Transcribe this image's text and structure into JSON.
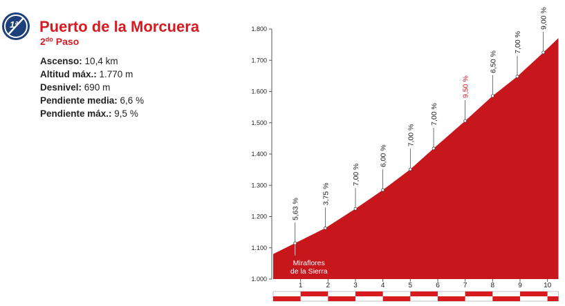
{
  "header": {
    "category_badge": "1ª",
    "title": "Puerto de la Morcuera",
    "stage_number": "2",
    "stage_suffix": "do",
    "stage_word": "Paso",
    "stats": [
      {
        "label": "Ascenso:",
        "value": "10,4 km"
      },
      {
        "label": "Altitud máx.:",
        "value": "1.770 m"
      },
      {
        "label": "Desnivel:",
        "value": "690 m"
      },
      {
        "label": "Pendiente media:",
        "value": "6,6 %"
      },
      {
        "label": "Pendiente máx.:",
        "value": "9,5 %"
      }
    ]
  },
  "chart_data": {
    "type": "area",
    "color": "#c8161d",
    "x": [
      0,
      0.8,
      1.9,
      3,
      4,
      5,
      5.85,
      7,
      8,
      8.9,
      9.85,
      10.4
    ],
    "y": [
      1080,
      1115,
      1163,
      1225,
      1285,
      1351,
      1418,
      1506,
      1586,
      1648,
      1725,
      1771
    ],
    "point_labels": [
      null,
      "5,63 %",
      "3,75 %",
      "7,00 %",
      "6,00 %",
      "7,00 %",
      "7,00 %",
      "9,50 %",
      "6,50 %",
      "7,00 %",
      "9,00 %",
      null
    ],
    "point_label_colors": [
      null,
      "#222",
      "#222",
      "#222",
      "#222",
      "#222",
      "#222",
      "#d71920",
      "#222",
      "#222",
      "#222",
      null
    ],
    "xlim": [
      0,
      10.4
    ],
    "xticks": [
      1,
      2,
      3,
      4,
      5,
      6,
      7,
      8,
      9,
      10
    ],
    "ylim": [
      1000,
      1800
    ],
    "yticks": [
      {
        "value": 1000,
        "label": "1.000"
      },
      {
        "value": 1100,
        "label": "1.100"
      },
      {
        "value": 1200,
        "label": "1.200"
      },
      {
        "value": 1300,
        "label": "1.300"
      },
      {
        "value": 1400,
        "label": "1.400"
      },
      {
        "value": 1500,
        "label": "1.500"
      },
      {
        "value": 1600,
        "label": "1.600"
      },
      {
        "value": 1700,
        "label": "1.700"
      },
      {
        "value": 1800,
        "label": "1.800"
      }
    ],
    "annotations": [
      {
        "lines": [
          "Miraflores",
          "de la Sierra"
        ],
        "x": 0.8
      }
    ]
  }
}
